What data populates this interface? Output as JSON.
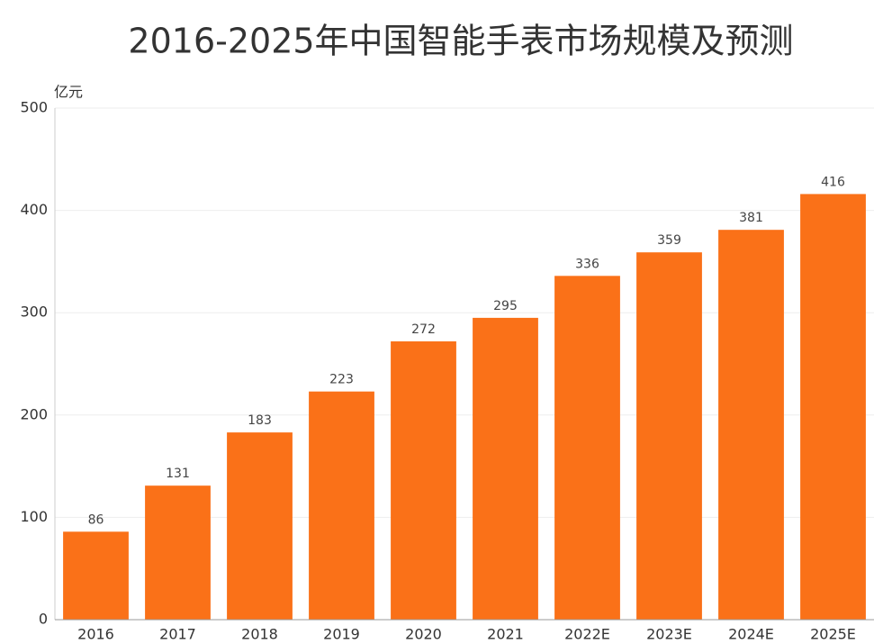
{
  "chart_data": {
    "type": "bar",
    "title": "2016-2025年中国智能手表市场规模及预测",
    "y_label": "亿元",
    "categories": [
      "2016",
      "2017",
      "2018",
      "2019",
      "2020",
      "2021",
      "2022E",
      "2023E",
      "2024E",
      "2025E"
    ],
    "values": [
      86,
      131,
      183,
      223,
      272,
      295,
      336,
      359,
      381,
      416
    ],
    "color": "#fa7118",
    "ylim": [
      0,
      500
    ],
    "yticks": [
      0,
      100,
      200,
      300,
      400,
      500
    ],
    "grid": true
  }
}
